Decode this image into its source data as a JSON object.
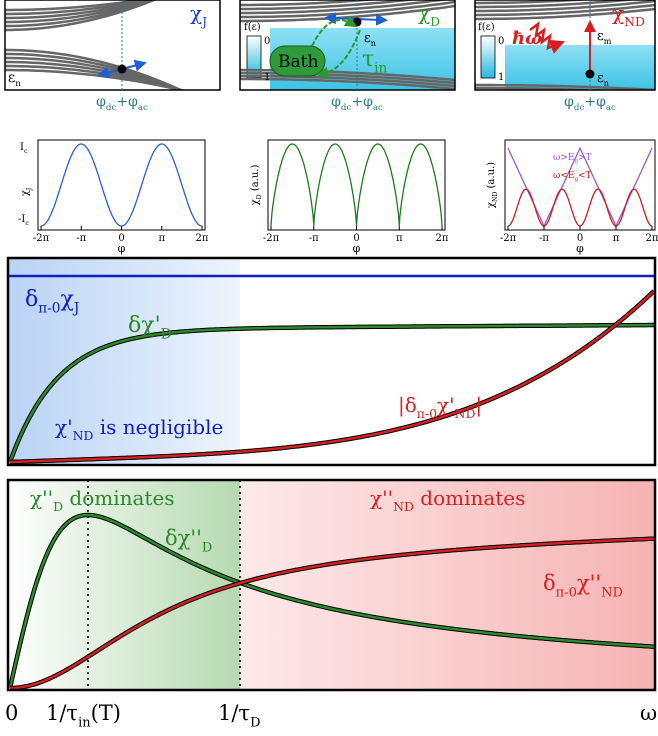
{
  "schematics": [
    {
      "chi": "χ",
      "chi_sub": "J",
      "eps": "ε",
      "eps_sub": "n"
    },
    {
      "chi": "χ",
      "chi_sub": "D",
      "f_axis": "f(ε)",
      "f_top": "0",
      "f_bottom": "1",
      "bath": "Bath",
      "eps": "ε",
      "eps_sub": "n",
      "tau": "τ",
      "tau_sub": "in"
    },
    {
      "chi": "χ",
      "chi_sub": "ND",
      "f_axis": "f(ε)",
      "f_top": "0",
      "f_bottom": "1",
      "hw": "ħω",
      "eps_m": "ε",
      "eps_m_sub": "m",
      "eps": "ε",
      "eps_sub": "n"
    }
  ],
  "phase": {
    "phi1": "φ",
    "sub1": "dc",
    "plus": "+",
    "phi2": "φ",
    "sub2": "ac"
  },
  "plots": [
    {
      "ylabel": "χ",
      "ylabel_sub": "J",
      "ytick_top": "I",
      "ytick_top_sub": "c",
      "ytick_bottom": "-I",
      "ytick_bottom_sub": "c"
    },
    {
      "ylabel": "χ",
      "ylabel_sub": "D",
      "ylabel_unit": " (a.u.)"
    },
    {
      "ylabel": "χ",
      "ylabel_sub": "ND",
      "ylabel_unit": " (a.u.)",
      "legend": [
        "ω>E",
        "g",
        ">T",
        "ω<E",
        "g",
        "<T"
      ]
    }
  ],
  "xticks": [
    "-2π",
    "-π",
    "0",
    "π",
    "2π"
  ],
  "xlabel": "φ",
  "real_panel": {
    "dJ": [
      "δ",
      "π-0",
      "χ",
      "J"
    ],
    "dD": [
      "δχ'",
      "D"
    ],
    "negl": [
      "χ'",
      "ND",
      " is negligible"
    ],
    "dND": [
      "|δ",
      "π-0",
      "χ'",
      "ND",
      "|"
    ]
  },
  "imag_panel": {
    "domD": [
      "χ''",
      "D",
      " dominates"
    ],
    "dD": [
      "δχ''",
      "D"
    ],
    "domND": [
      "χ''",
      "ND",
      " dominates"
    ],
    "dND": [
      "δ",
      "π-0",
      "χ''",
      "ND"
    ]
  },
  "axis": {
    "zero": "0",
    "tin": "1/τ",
    "tin_sub": "in",
    "tin_arg": "(T)",
    "tD": "1/τ",
    "tD_sub": "D",
    "omega": "ω"
  }
}
